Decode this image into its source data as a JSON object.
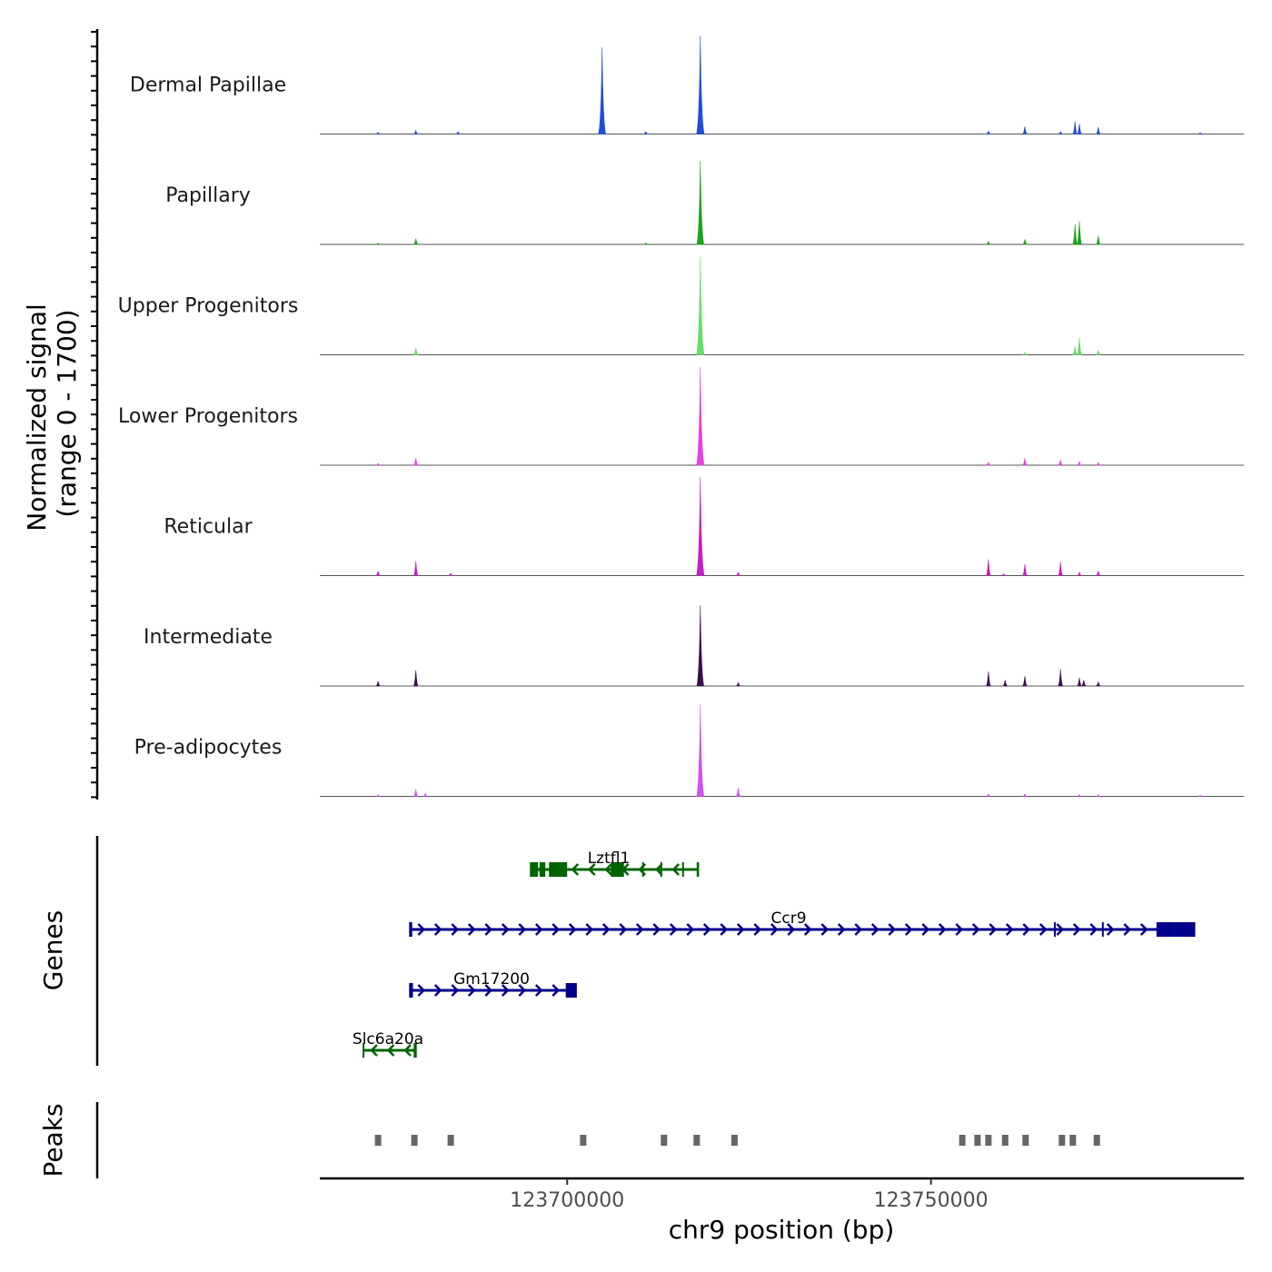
{
  "chart_data": {
    "type": "area",
    "chromosome": "chr9",
    "x_range": [
      123666000,
      123793000
    ],
    "y_axis_title_line1": "Normalized signal",
    "y_axis_title_line2": "(range 0 - 1700)",
    "y_range": [
      0,
      1700
    ],
    "xlabel": "chr9 position (bp)",
    "x_ticks": [
      {
        "value": 123700000,
        "label": "123700000"
      },
      {
        "value": 123750000,
        "label": "123750000"
      }
    ],
    "tracks": [
      {
        "name": "Dermal Papillae",
        "color": "#1f4fd8",
        "peaks": [
          [
            123679200,
            60
          ],
          [
            123704800,
            1500
          ],
          [
            123718300,
            1700
          ],
          [
            123710800,
            40
          ],
          [
            123685000,
            40
          ],
          [
            123757900,
            50
          ],
          [
            123762900,
            130
          ],
          [
            123767800,
            40
          ],
          [
            123769800,
            220
          ],
          [
            123770400,
            180
          ],
          [
            123773000,
            120
          ],
          [
            123674000,
            30
          ],
          [
            123787000,
            20
          ]
        ]
      },
      {
        "name": "Papillary",
        "color": "#1aa41a",
        "peaks": [
          [
            123679200,
            100
          ],
          [
            123718300,
            1450
          ],
          [
            123757900,
            50
          ],
          [
            123762900,
            90
          ],
          [
            123769800,
            350
          ],
          [
            123770400,
            400
          ],
          [
            123773000,
            150
          ],
          [
            123674000,
            20
          ],
          [
            123710800,
            25
          ]
        ]
      },
      {
        "name": "Upper Progenitors",
        "color": "#66dd66",
        "peaks": [
          [
            123679200,
            120
          ],
          [
            123718300,
            1700
          ],
          [
            123770400,
            300
          ],
          [
            123769800,
            150
          ],
          [
            123773000,
            80
          ],
          [
            123762900,
            40
          ]
        ]
      },
      {
        "name": "Lower Progenitors",
        "color": "#e83fe3",
        "peaks": [
          [
            123679200,
            120
          ],
          [
            123718300,
            1700
          ],
          [
            123674000,
            30
          ],
          [
            123757900,
            50
          ],
          [
            123762900,
            120
          ],
          [
            123767800,
            90
          ],
          [
            123770400,
            60
          ],
          [
            123773000,
            50
          ]
        ]
      },
      {
        "name": "Reticular",
        "color": "#c21ec2",
        "peaks": [
          [
            123679200,
            250
          ],
          [
            123718300,
            1700
          ],
          [
            123674000,
            80
          ],
          [
            123684000,
            40
          ],
          [
            123723500,
            60
          ],
          [
            123757900,
            280
          ],
          [
            123762900,
            200
          ],
          [
            123767800,
            240
          ],
          [
            123770400,
            60
          ],
          [
            123773000,
            80
          ],
          [
            123760000,
            30
          ]
        ]
      },
      {
        "name": "Intermediate",
        "color": "#3c0d4f",
        "peaks": [
          [
            123679200,
            270
          ],
          [
            123718300,
            1400
          ],
          [
            123674000,
            80
          ],
          [
            123723500,
            60
          ],
          [
            123757900,
            250
          ],
          [
            123760200,
            100
          ],
          [
            123762900,
            170
          ],
          [
            123767800,
            290
          ],
          [
            123770400,
            140
          ],
          [
            123771000,
            100
          ],
          [
            123773000,
            70
          ]
        ]
      },
      {
        "name": "Pre-adipocytes",
        "color": "#cc55ee",
        "peaks": [
          [
            123679200,
            120
          ],
          [
            123718300,
            1600
          ],
          [
            123723500,
            150
          ],
          [
            123680500,
            50
          ],
          [
            123674000,
            30
          ],
          [
            123757900,
            40
          ],
          [
            123762900,
            40
          ],
          [
            123770400,
            30
          ],
          [
            123773000,
            30
          ],
          [
            123787000,
            20
          ]
        ]
      }
    ],
    "genes": [
      {
        "name": "Lztfl1",
        "strand": "-",
        "color": "#006400",
        "start": 123695000,
        "end": 123718000,
        "row": 0,
        "exons": [
          [
            123695000,
            123696000
          ],
          [
            123696200,
            123697000
          ],
          [
            123697500,
            123700000
          ],
          [
            123706000,
            123707800
          ],
          [
            123710300,
            123710500
          ],
          [
            123712800,
            123713000
          ],
          [
            123715800,
            123716000
          ],
          [
            123717800,
            123718000
          ]
        ]
      },
      {
        "name": "Ccr9",
        "strand": "+",
        "color": "#00008b",
        "start": 123678400,
        "end": 123786200,
        "row": 1,
        "exons": [
          [
            123678400,
            123678700
          ],
          [
            123766900,
            123767100
          ],
          [
            123773500,
            123773700
          ],
          [
            123781000,
            123783500
          ],
          [
            123783500,
            123786200
          ]
        ]
      },
      {
        "name": "Gm17200",
        "strand": "+",
        "color": "#00008b",
        "start": 123678400,
        "end": 123701200,
        "row": 2,
        "exons": [
          [
            123678400,
            123678800
          ],
          [
            123699800,
            123701200
          ]
        ]
      },
      {
        "name": "Slc6a20a",
        "strand": "-",
        "color": "#006400",
        "start": 123672000,
        "end": 123679200,
        "row": 3,
        "exons": [
          [
            123678900,
            123679200
          ]
        ]
      }
    ],
    "peak_regions": [
      123674000,
      123679000,
      123684000,
      123702200,
      123713300,
      123717800,
      123723000,
      123754300,
      123756400,
      123757900,
      123760200,
      123763000,
      123768000,
      123769500,
      123772800
    ]
  },
  "panel_titles": {
    "genes": "Genes",
    "peaks": "Peaks"
  }
}
